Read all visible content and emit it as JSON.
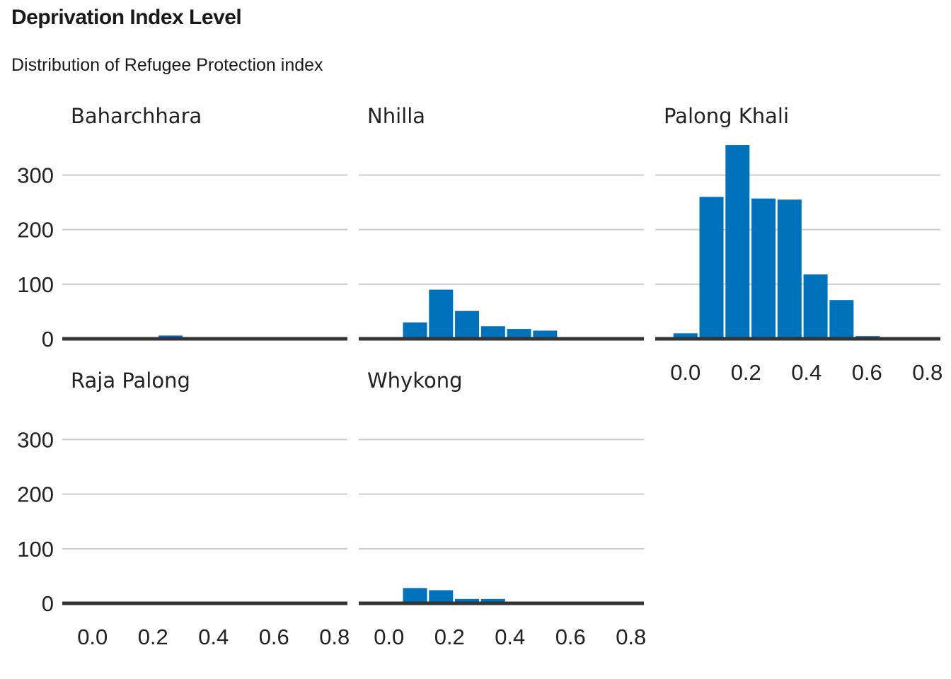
{
  "header": {
    "title": "Deprivation Index Level",
    "subtitle": "Distribution of Refugee Protection index"
  },
  "chart_data": {
    "type": "bar",
    "subtype": "faceted-histogram",
    "title": "Deprivation Index Level",
    "subtitle": "Distribution of Refugee Protection index",
    "bar_color": "#0072bc",
    "xlim": [
      0.0,
      0.8
    ],
    "ylim": [
      0,
      360
    ],
    "x_ticks": [
      0.0,
      0.2,
      0.4,
      0.6,
      0.8
    ],
    "x_tick_labels": [
      "0.0",
      "0.2",
      "0.4",
      "0.6",
      "0.8"
    ],
    "y_ticks": [
      0,
      100,
      200,
      300
    ],
    "y_tick_labels": [
      "0",
      "100",
      "200",
      "300"
    ],
    "bin_centers": [
      0.0,
      0.086,
      0.172,
      0.258,
      0.344,
      0.43,
      0.516,
      0.602,
      0.688,
      0.774
    ],
    "grid": true,
    "panels": [
      {
        "name": "Baharchhara",
        "values": [
          0,
          0,
          0,
          6,
          0,
          0,
          0,
          0,
          0,
          0
        ]
      },
      {
        "name": "Nhilla",
        "values": [
          0,
          30,
          90,
          51,
          23,
          18,
          15,
          0,
          0,
          0
        ]
      },
      {
        "name": "Palong Khali",
        "values": [
          10,
          260,
          355,
          257,
          255,
          118,
          71,
          5,
          0,
          0
        ]
      },
      {
        "name": "Raja Palong",
        "values": [
          0,
          0,
          0,
          0,
          0,
          0,
          0,
          0,
          0,
          0
        ]
      },
      {
        "name": "Whykong",
        "values": [
          0,
          28,
          24,
          8,
          8,
          2,
          0,
          0,
          0,
          0
        ]
      }
    ]
  }
}
